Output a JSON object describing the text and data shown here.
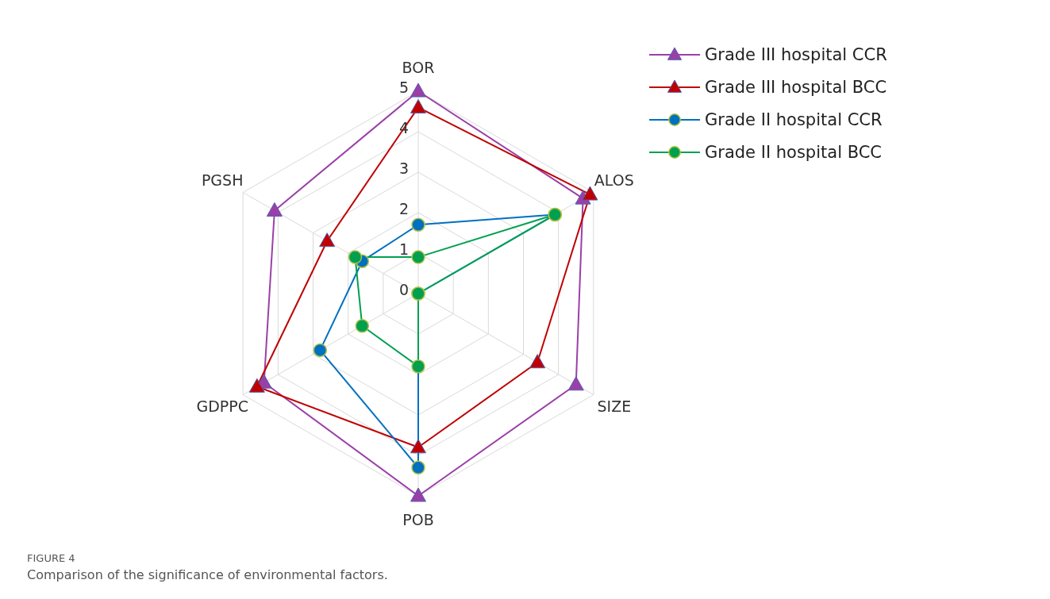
{
  "chart_data": {
    "type": "radar",
    "categories": [
      "BOR",
      "ALOS",
      "SIZE",
      "POB",
      "GDPPC",
      "PGSH"
    ],
    "series": [
      {
        "name": "Grade III hospital CCR",
        "color": "#9b3fa8",
        "marker": "triangle",
        "values": [
          5,
          4.7,
          4.5,
          5,
          4.4,
          4.1
        ]
      },
      {
        "name": "Grade III hospital BCC",
        "color": "#c00000",
        "marker": "triangle",
        "values": [
          4.6,
          4.9,
          3.4,
          3.8,
          4.6,
          2.6
        ]
      },
      {
        "name": "Grade II hospital CCR",
        "color": "#0070c0",
        "marker": "circle",
        "values": [
          1.7,
          3.9,
          0,
          4.3,
          2.8,
          1.6
        ]
      },
      {
        "name": "Grade II hospital BCC",
        "color": "#00a050",
        "marker": "circle",
        "values": [
          0.9,
          3.9,
          0,
          1.8,
          1.6,
          1.8
        ]
      }
    ],
    "ylim": [
      0,
      5
    ],
    "yticks": [
      0,
      1,
      2,
      3,
      4,
      5
    ],
    "grid": true,
    "legend": "top right",
    "annotations": [
      "FIGURE 4",
      "Comparison of the significance of environmental factors."
    ]
  }
}
